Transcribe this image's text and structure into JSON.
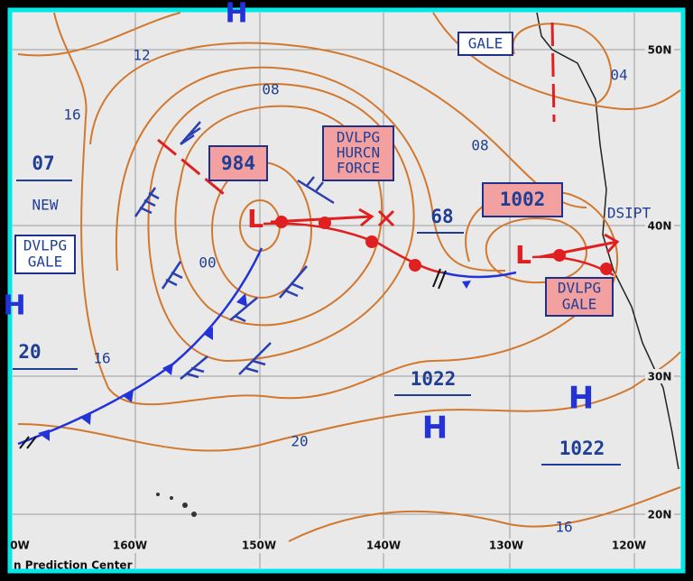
{
  "highs": [
    "H",
    "H",
    "H",
    "H"
  ],
  "lows": [
    "L",
    "L"
  ],
  "pressures": [
    "984",
    "1002",
    "1022",
    "1022",
    "68",
    "07",
    "20"
  ],
  "isobar_labels": [
    "12",
    "16",
    "08",
    "00",
    "16",
    "20",
    "08",
    "04",
    "16"
  ],
  "warnings": [
    {
      "lines": [
        "GALE"
      ]
    },
    {
      "lines": [
        "DVLPG",
        "HURCN",
        "FORCE"
      ]
    },
    {
      "lines": [
        "DVLPG",
        "GALE"
      ]
    },
    {
      "lines": [
        "DVLPG",
        "GALE"
      ]
    }
  ],
  "status_labels": [
    "NEW",
    "DSIPT"
  ],
  "latitudes": [
    "50N",
    "40N",
    "30N",
    "20N"
  ],
  "longitudes": [
    "0W",
    "160W",
    "150W",
    "140W",
    "130W",
    "120W"
  ],
  "footer": "n Prediction Center"
}
